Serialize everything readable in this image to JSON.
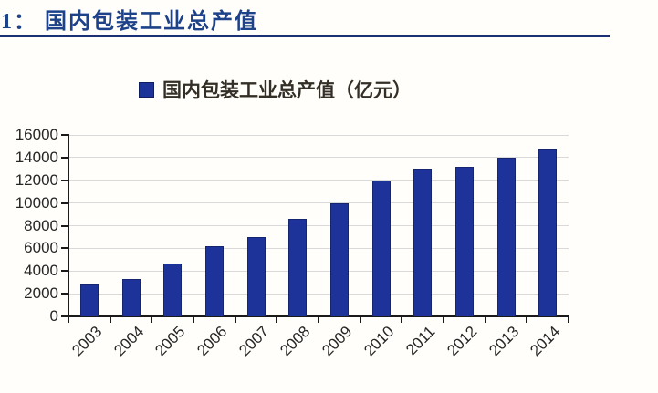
{
  "header": {
    "title": "1：  国内包装工业总产值",
    "title_color": "#1d4289",
    "rule_color": "#1b2f77"
  },
  "legend": {
    "marker_color": "#1e3399",
    "label": "国内包装工业总产值（亿元）"
  },
  "chart_data": {
    "type": "bar",
    "title": "国内包装工业总产值（亿元）",
    "xlabel": "",
    "ylabel": "",
    "categories": [
      "2003",
      "2004",
      "2005",
      "2006",
      "2007",
      "2008",
      "2009",
      "2010",
      "2011",
      "2012",
      "2013",
      "2014"
    ],
    "values": [
      2800,
      3300,
      4700,
      6200,
      7000,
      8600,
      10000,
      12000,
      13000,
      13200,
      14000,
      14800
    ],
    "unit": "亿元",
    "ylim": [
      0,
      16000
    ],
    "ytick_step": 2000,
    "ytick_labels": [
      "0",
      "2000",
      "4000",
      "6000",
      "8000",
      "10000",
      "12000",
      "14000",
      "16000"
    ],
    "grid": true,
    "grid_color": "#d9d9d9",
    "bar_color": "#1e3399",
    "bar_border_color": "#15256f",
    "axis_color": "#1a1a1a",
    "legend_position": "top"
  }
}
